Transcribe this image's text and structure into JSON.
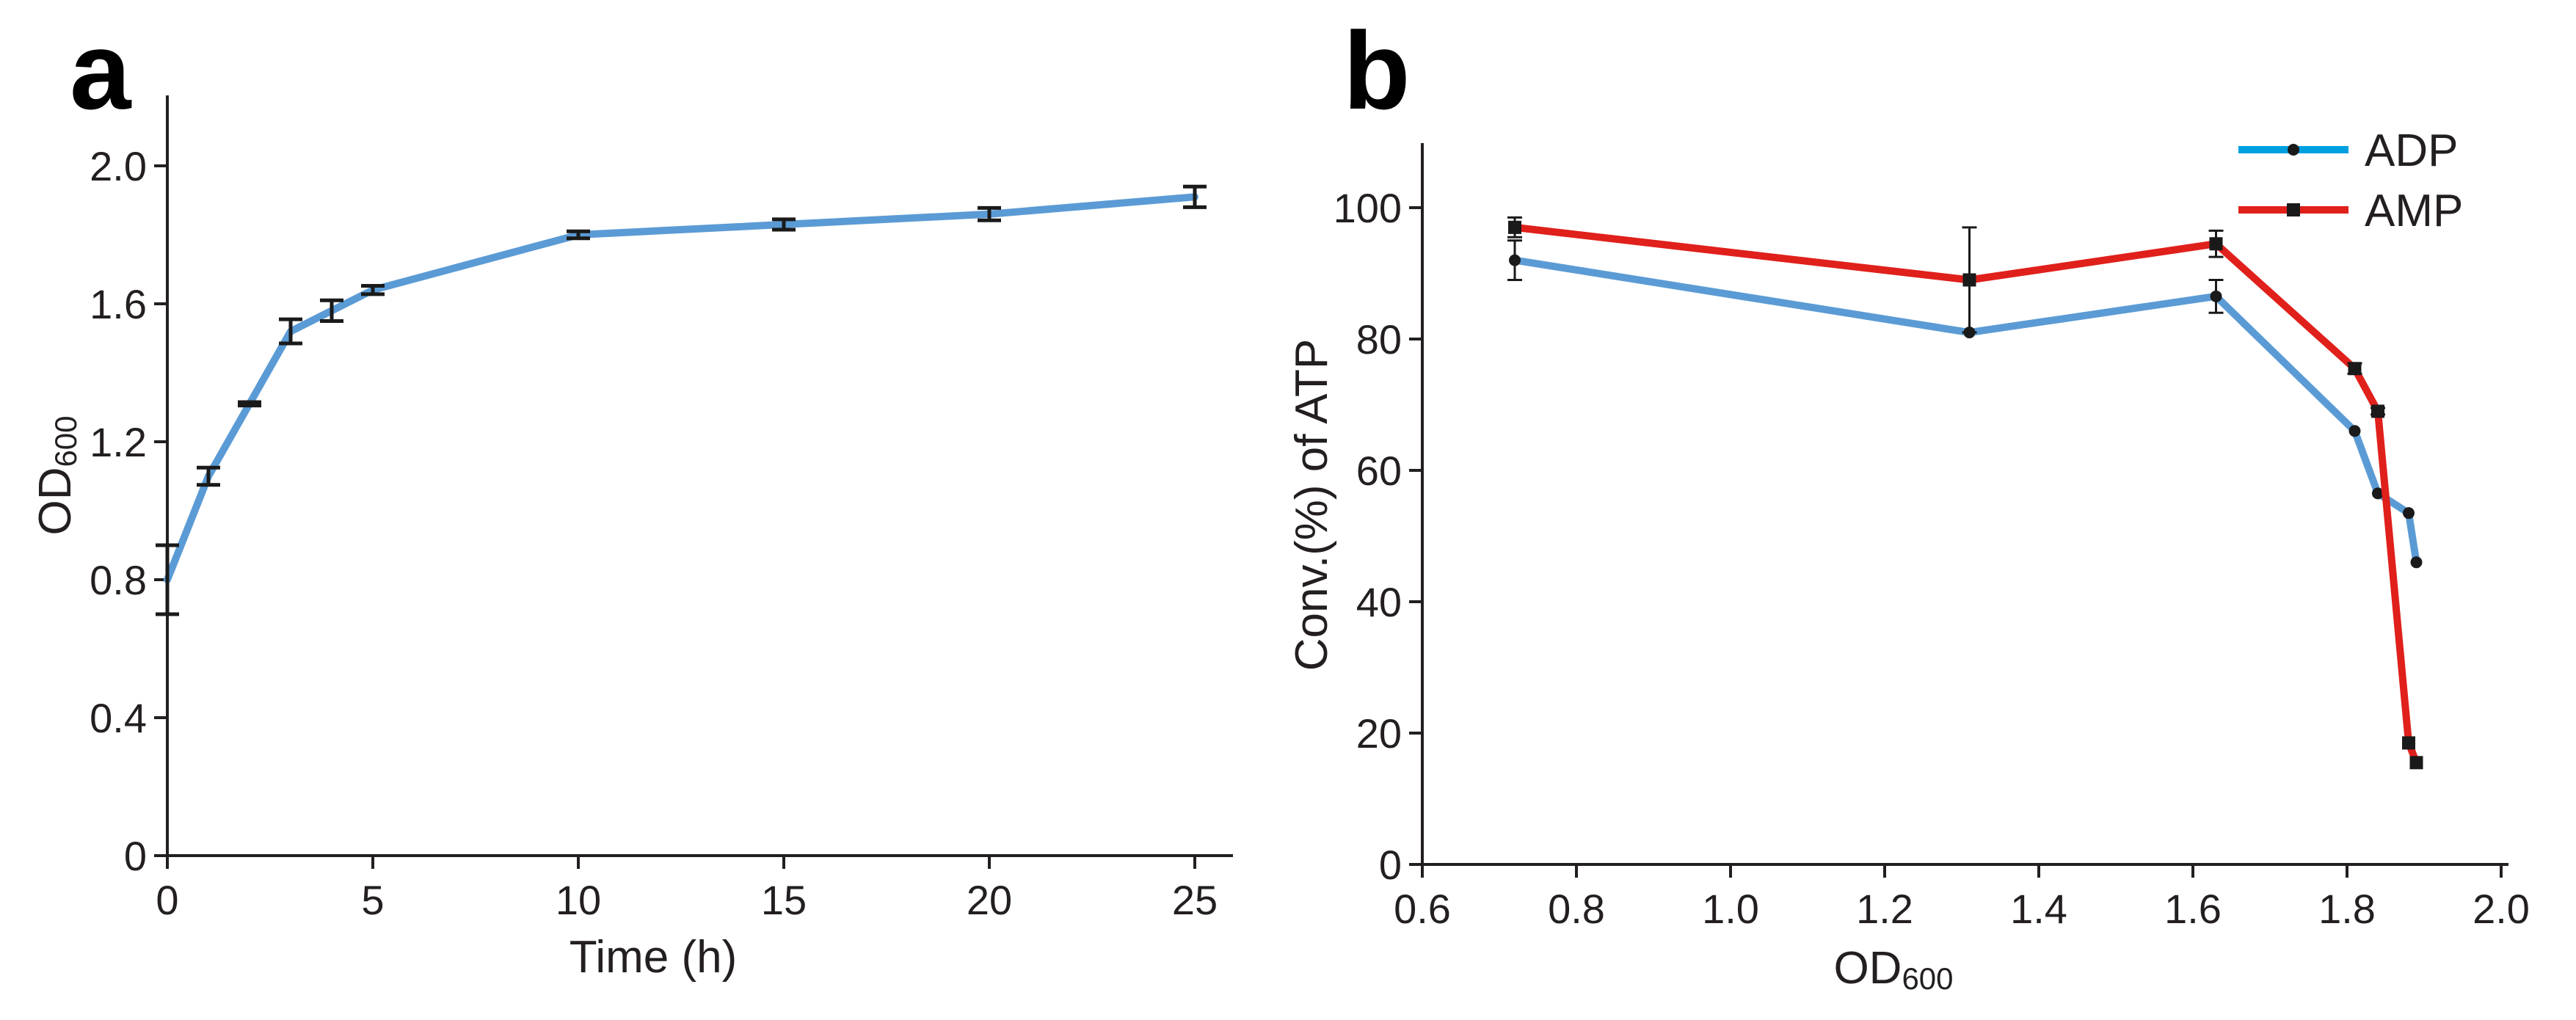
{
  "colors": {
    "blue": "#5b9bd5",
    "red": "#e0201b",
    "legend_blue": "#00a0e0",
    "axis": "#231f20",
    "marker": "#1a1a1a"
  },
  "chart_data": [
    {
      "type": "line",
      "panel_label": "a",
      "xlabel": "Time (h)",
      "ylabel": "OD",
      "ylabel_sub": "600",
      "xlim": [
        0,
        26
      ],
      "ylim": [
        0,
        2.2
      ],
      "xticks": [
        0,
        5,
        10,
        15,
        20,
        25
      ],
      "xtick_labels": [
        "0",
        "5",
        "10",
        "15",
        "20",
        "25"
      ],
      "yticks": [
        0,
        0.4,
        0.8,
        1.2,
        1.6,
        2.0
      ],
      "ytick_labels": [
        "0",
        "0.4",
        "0.8",
        "1.2",
        "1.6",
        "2.0"
      ],
      "series": [
        {
          "name": "OD600",
          "color": "#5b9bd5",
          "x": [
            0,
            1,
            2,
            3,
            4,
            5,
            10,
            15,
            20,
            25
          ],
          "y": [
            0.8,
            1.1,
            1.31,
            1.52,
            1.58,
            1.64,
            1.8,
            1.83,
            1.86,
            1.91
          ],
          "err": [
            0.1,
            0.025,
            0.005,
            0.035,
            0.03,
            0.012,
            0.01,
            0.015,
            0.018,
            0.03
          ]
        }
      ]
    },
    {
      "type": "line",
      "panel_label": "b",
      "xlabel": "OD",
      "xlabel_sub": "600",
      "ylabel": "Conv.(%) of ATP",
      "xlim": [
        0.6,
        2.0
      ],
      "ylim": [
        0,
        110
      ],
      "xticks": [
        0.6,
        0.8,
        1.0,
        1.2,
        1.4,
        1.6,
        1.8,
        2.0
      ],
      "xtick_labels": [
        "0.6",
        "0.8",
        "1.0",
        "1.2",
        "1.4",
        "1.6",
        "1.8",
        "2.0"
      ],
      "yticks": [
        0,
        20,
        40,
        60,
        80,
        100
      ],
      "ytick_labels": [
        "0",
        "20",
        "40",
        "60",
        "80",
        "100"
      ],
      "legend_position": "top-right",
      "series": [
        {
          "name": "ADP",
          "color": "#5b9bd5",
          "legend_color": "#00a0e0",
          "marker": "circle",
          "x": [
            0.72,
            1.31,
            1.63,
            1.81,
            1.84,
            1.88,
            1.89
          ],
          "y": [
            92,
            81,
            86.5,
            66,
            56.5,
            53.5,
            46
          ],
          "err": [
            3,
            0,
            2.5,
            0,
            0,
            0,
            0
          ]
        },
        {
          "name": "AMP",
          "color": "#e0201b",
          "legend_color": "#e0201b",
          "marker": "square",
          "x": [
            0.72,
            1.31,
            1.63,
            1.81,
            1.84,
            1.88,
            1.89
          ],
          "y": [
            97,
            89,
            94.5,
            75.5,
            69,
            18.5,
            15.5
          ],
          "err": [
            1.5,
            8,
            2,
            0.8,
            0.5,
            0,
            0
          ]
        }
      ]
    }
  ]
}
